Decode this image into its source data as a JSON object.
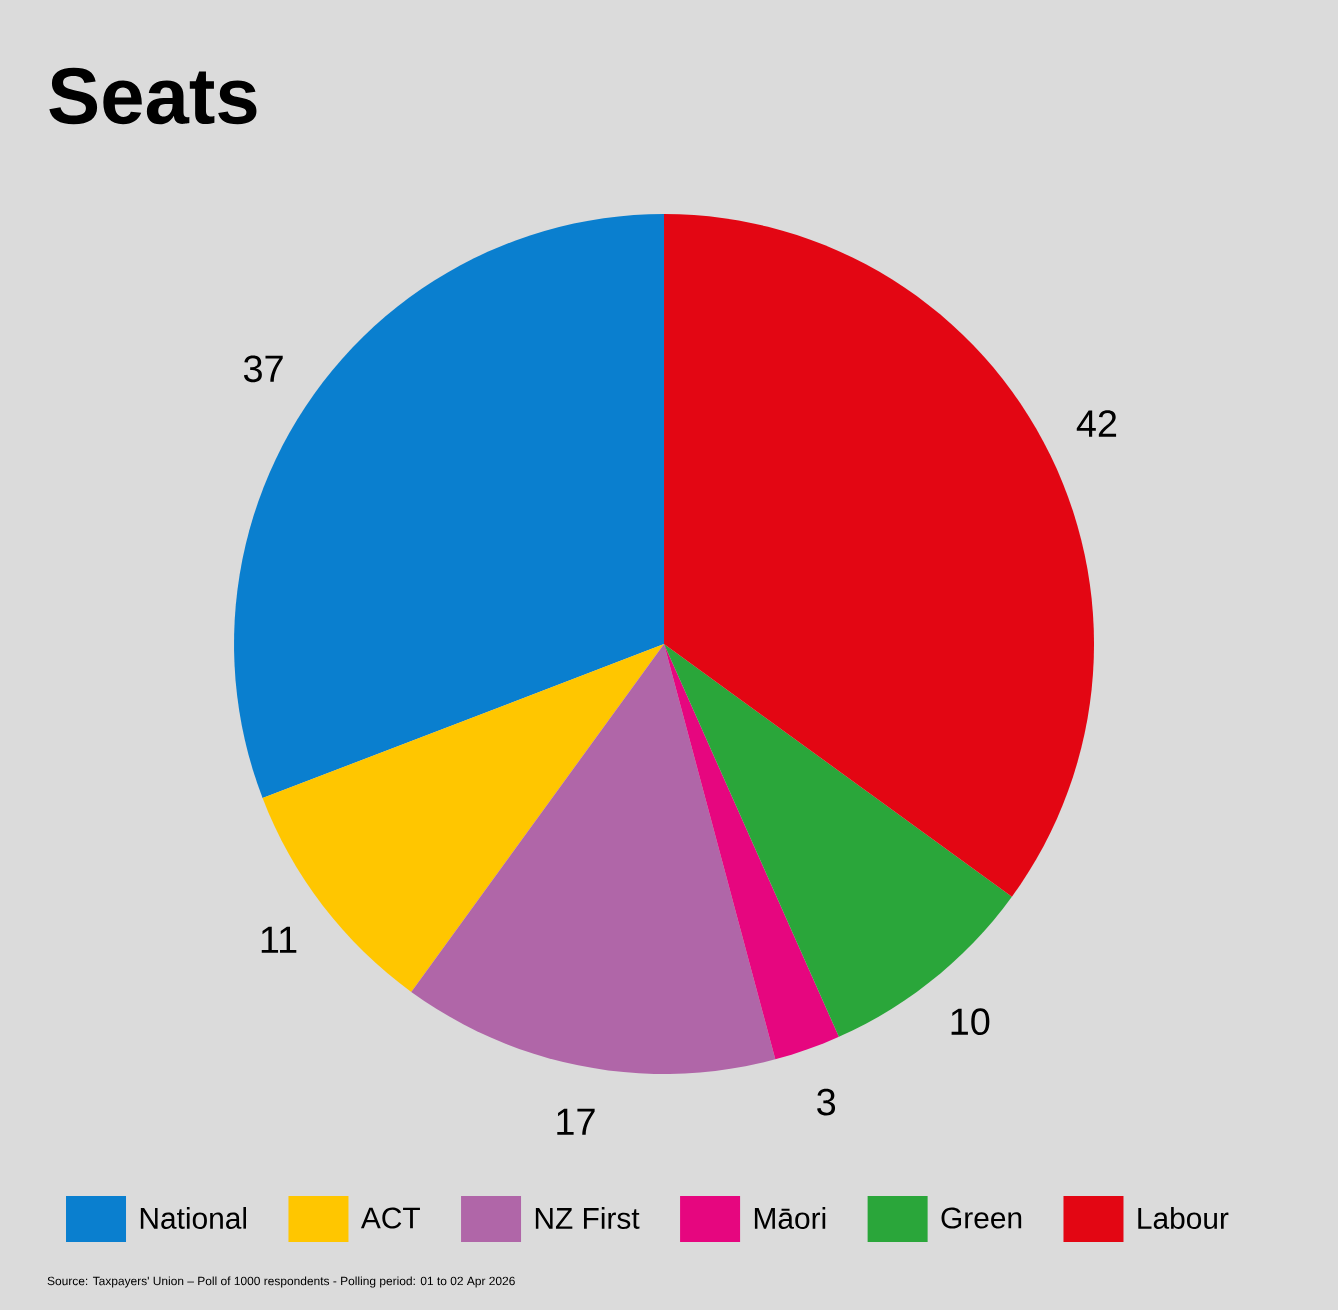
{
  "chart_data": {
    "type": "pie",
    "title": "Seats",
    "categories": [
      "National",
      "ACT",
      "NZ First",
      "Māori",
      "Green",
      "Labour"
    ],
    "values": [
      37,
      11,
      17,
      3,
      10,
      42
    ],
    "colors": [
      "#0a7fcf",
      "#ffc600",
      "#b066a8",
      "#e6067f",
      "#2aa63a",
      "#e30613"
    ],
    "data_labels": true,
    "legend": "bottom",
    "annotations": [
      "Source: Taxpayers' Union – Poll of 1000 respondents - Polling period: 01 to 02 Apr 2026"
    ]
  }
}
